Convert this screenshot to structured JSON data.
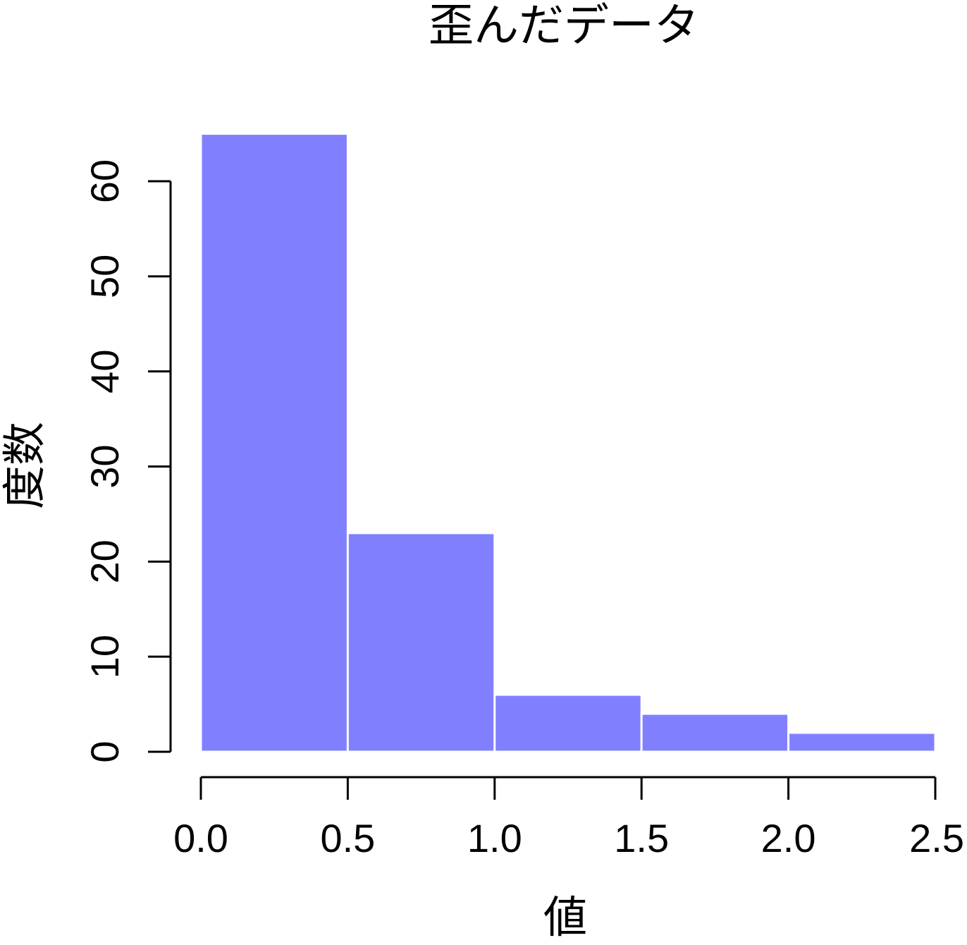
{
  "chart_data": {
    "type": "bar",
    "title": "歪んだデータ",
    "xlabel": "値",
    "ylabel": "度数",
    "bins": [
      {
        "start": 0.0,
        "end": 0.5,
        "value": 65
      },
      {
        "start": 0.5,
        "end": 1.0,
        "value": 23
      },
      {
        "start": 1.0,
        "end": 1.5,
        "value": 6
      },
      {
        "start": 1.5,
        "end": 2.0,
        "value": 4
      },
      {
        "start": 2.0,
        "end": 2.5,
        "value": 2
      }
    ],
    "x_ticks": [
      "0.0",
      "0.5",
      "1.0",
      "1.5",
      "2.0",
      "2.5"
    ],
    "y_ticks": [
      "0",
      "10",
      "20",
      "30",
      "40",
      "50",
      "60"
    ],
    "xlim": [
      0,
      2.5
    ],
    "ylim": [
      0,
      60
    ],
    "bar_color": "#8080ff",
    "bar_border_color": "#ffffff",
    "grid": false,
    "legend": "none"
  }
}
